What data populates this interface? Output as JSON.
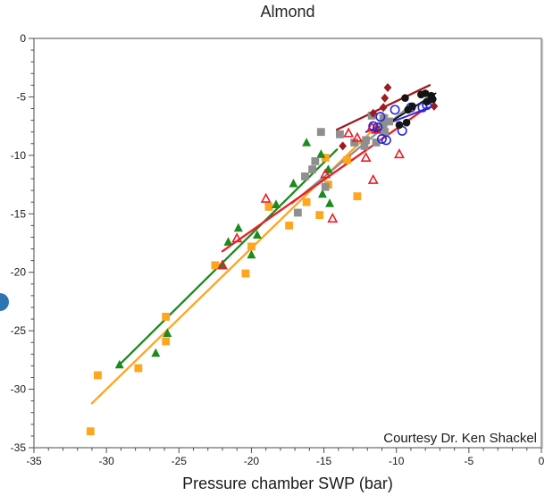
{
  "chart_data": {
    "type": "scatter",
    "title": "Almond",
    "xlabel": "Pressure chamber SWP (bar)",
    "ylabel": "",
    "xlim": [
      -35,
      0
    ],
    "ylim": [
      -35,
      0
    ],
    "x_ticks": [
      -35,
      -30,
      -25,
      -20,
      -15,
      -10,
      -5,
      0
    ],
    "y_ticks": [
      0,
      -5,
      -10,
      -15,
      -20,
      -25,
      -30,
      -35
    ],
    "minor_tick_step": 1,
    "grid": false,
    "legend": "none",
    "annotation": "Courtesy Dr. Ken Shackel",
    "frame_color": "#8f8f8f",
    "tick_color": "#4d4d4d",
    "tick_label_color": "#1a1a1a",
    "series": [
      {
        "name": "orange-squares",
        "marker": "square",
        "fill": "filled",
        "color": "#FFA51E",
        "trend": [
          [
            -31.0,
            -31.2
          ],
          [
            -10.6,
            -6.6
          ]
        ],
        "points": [
          [
            -31.1,
            -33.6
          ],
          [
            -30.6,
            -28.8
          ],
          [
            -27.8,
            -28.2
          ],
          [
            -25.9,
            -23.8
          ],
          [
            -25.9,
            -25.9
          ],
          [
            -22.5,
            -19.4
          ],
          [
            -20.4,
            -20.1
          ],
          [
            -20.0,
            -17.8
          ],
          [
            -18.8,
            -14.4
          ],
          [
            -17.4,
            -16.0
          ],
          [
            -16.2,
            -14.0
          ],
          [
            -15.3,
            -15.1
          ],
          [
            -14.9,
            -10.2
          ],
          [
            -14.7,
            -12.5
          ],
          [
            -13.4,
            -10.4
          ],
          [
            -12.7,
            -13.5
          ]
        ]
      },
      {
        "name": "green-triangles",
        "marker": "triangle",
        "fill": "filled",
        "color": "#1D8A1D",
        "trend": [
          [
            -29.1,
            -27.9
          ],
          [
            -14.1,
            -9.5
          ]
        ],
        "points": [
          [
            -29.1,
            -27.9
          ],
          [
            -26.6,
            -26.9
          ],
          [
            -25.8,
            -25.2
          ],
          [
            -22.0,
            -19.4
          ],
          [
            -21.6,
            -17.4
          ],
          [
            -20.9,
            -16.2
          ],
          [
            -20.0,
            -18.5
          ],
          [
            -19.6,
            -16.8
          ],
          [
            -18.3,
            -14.2
          ],
          [
            -17.1,
            -12.4
          ],
          [
            -16.2,
            -8.9
          ],
          [
            -15.2,
            -9.9
          ],
          [
            -15.1,
            -13.3
          ],
          [
            -14.7,
            -11.2
          ],
          [
            -14.6,
            -14.1
          ]
        ]
      },
      {
        "name": "gray-squares",
        "marker": "square",
        "fill": "filled",
        "color": "#8F8F8F",
        "trend": [
          [
            -17.2,
            -14.1
          ],
          [
            -9.0,
            -5.7
          ]
        ],
        "points": [
          [
            -16.8,
            -14.9
          ],
          [
            -16.3,
            -11.8
          ],
          [
            -15.8,
            -11.2
          ],
          [
            -15.6,
            -10.5
          ],
          [
            -15.2,
            -8.0
          ],
          [
            -14.9,
            -12.7
          ],
          [
            -13.9,
            -8.2
          ],
          [
            -12.9,
            -8.9
          ],
          [
            -12.2,
            -9.2
          ],
          [
            -12.1,
            -8.7
          ],
          [
            -11.7,
            -6.6
          ],
          [
            -11.4,
            -8.9
          ],
          [
            -10.9,
            -7.4
          ],
          [
            -10.9,
            -6.8
          ],
          [
            -10.8,
            -8.0
          ],
          [
            -10.5,
            -7.1
          ]
        ]
      },
      {
        "name": "red-open-triangles",
        "marker": "triangle",
        "fill": "open",
        "color": "#EC1C24",
        "trend": [
          [
            -22.0,
            -18.2
          ],
          [
            -7.9,
            -5.9
          ]
        ],
        "points": [
          [
            -22.0,
            -19.4
          ],
          [
            -21.0,
            -17.1
          ],
          [
            -19.0,
            -13.7
          ],
          [
            -14.9,
            -11.6
          ],
          [
            -14.4,
            -15.4
          ],
          [
            -13.3,
            -8.1
          ],
          [
            -12.7,
            -8.5
          ],
          [
            -12.1,
            -10.2
          ],
          [
            -11.7,
            -7.6
          ],
          [
            -11.6,
            -12.1
          ],
          [
            -11.4,
            -7.8
          ],
          [
            -9.8,
            -9.9
          ]
        ]
      },
      {
        "name": "dark-red-diamonds",
        "marker": "diamond",
        "fill": "filled",
        "color": "#9E1B1E",
        "trend": [
          [
            -14.1,
            -7.8
          ],
          [
            -7.7,
            -4.0
          ]
        ],
        "points": [
          [
            -13.7,
            -9.2
          ],
          [
            -11.6,
            -6.4
          ],
          [
            -10.9,
            -5.9
          ],
          [
            -10.8,
            -5.1
          ],
          [
            -10.6,
            -4.2
          ],
          [
            -7.4,
            -5.8
          ]
        ]
      },
      {
        "name": "blue-open-circles",
        "marker": "circle",
        "fill": "open",
        "color": "#2727D8",
        "trend": [
          [
            -12.1,
            -8.0
          ],
          [
            -7.5,
            -5.8
          ]
        ],
        "points": [
          [
            -11.6,
            -7.5
          ],
          [
            -11.3,
            -7.6
          ],
          [
            -11.1,
            -6.7
          ],
          [
            -11.0,
            -8.6
          ],
          [
            -10.7,
            -8.7
          ],
          [
            -10.1,
            -6.1
          ],
          [
            -9.6,
            -7.9
          ],
          [
            -9.0,
            -5.9
          ],
          [
            -8.2,
            -5.9
          ],
          [
            -7.9,
            -5.7
          ]
        ]
      },
      {
        "name": "black-circles",
        "marker": "circle",
        "fill": "filled",
        "color": "#141414",
        "trend": [
          [
            -11.5,
            -8.0
          ],
          [
            -7.3,
            -4.7
          ]
        ],
        "points": [
          [
            -9.8,
            -7.4
          ],
          [
            -9.4,
            -5.1
          ],
          [
            -9.3,
            -7.2
          ],
          [
            -9.2,
            -6.1
          ],
          [
            -8.9,
            -5.8
          ],
          [
            -8.3,
            -4.8
          ],
          [
            -8.0,
            -4.7
          ],
          [
            -7.9,
            -5.4
          ],
          [
            -7.6,
            -4.9
          ],
          [
            -7.5,
            -5.2
          ]
        ]
      }
    ]
  },
  "decorations": {
    "bullet_color": "#2E74B5"
  }
}
